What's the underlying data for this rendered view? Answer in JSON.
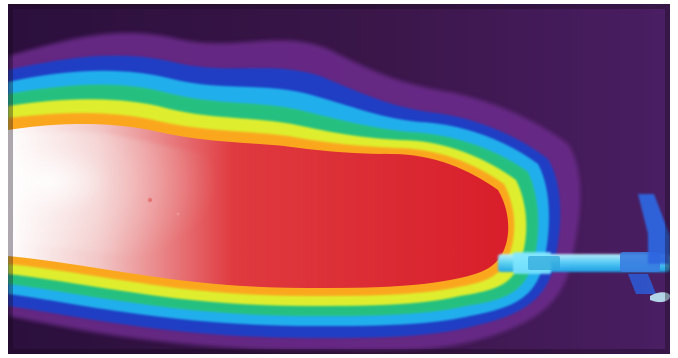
{
  "image": {
    "kind": "false-color thermal image of a muzzle flash / hot gas plume",
    "palette": [
      "#2a0f3a",
      "#6a2a8a",
      "#1f3fc8",
      "#20b5f0",
      "#27c27a",
      "#e8f12a",
      "#ff9b1a",
      "#d81e2a",
      "#ffffff"
    ],
    "visible_text": ""
  }
}
